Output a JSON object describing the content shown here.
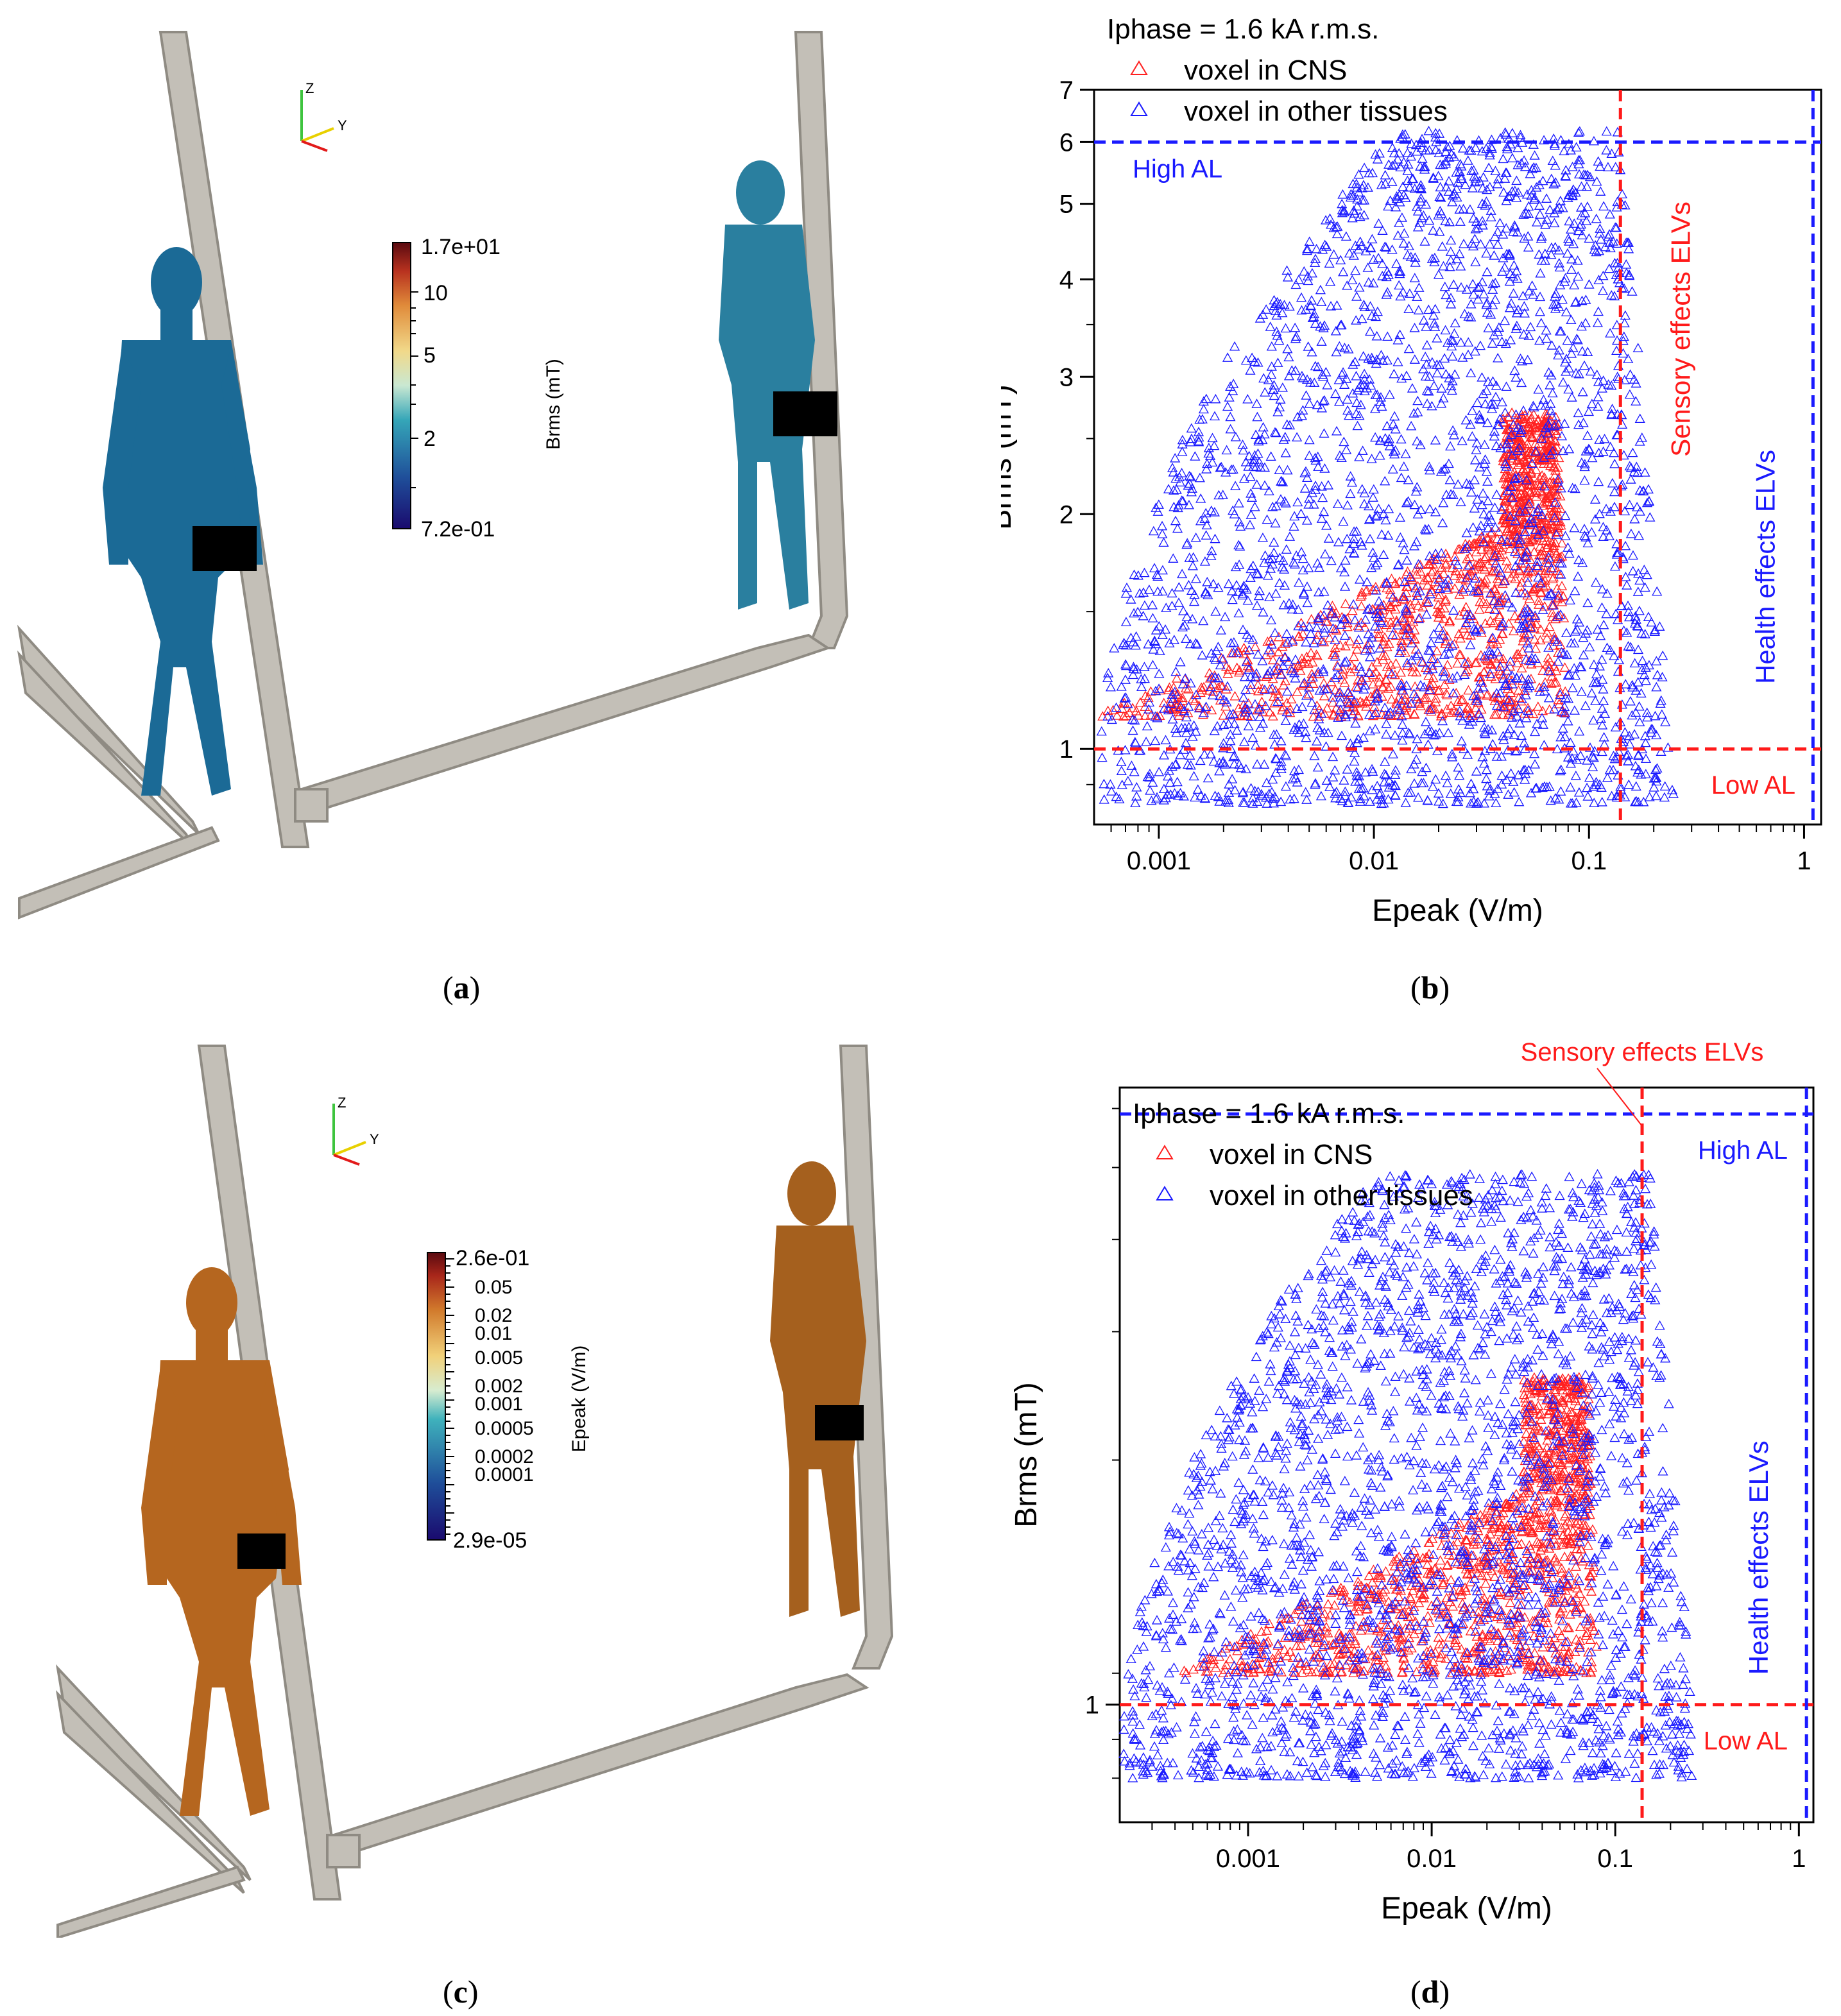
{
  "captions": {
    "a": "a",
    "b": "b",
    "c": "c",
    "d": "d"
  },
  "colors": {
    "cns": "#ff2020",
    "other": "#1a1aff",
    "limit_red": "#ff1a1a",
    "limit_blue": "#1a1aff",
    "pipe": "#bdb9b1"
  },
  "panel_a": {
    "axis_label_z": "Z",
    "axis_label_y": "Y",
    "colorbar": {
      "label": "Brms (mT)",
      "max": "1.7e+01",
      "min": "7.2e-01",
      "ticks": [
        "10",
        "5",
        "2"
      ],
      "colormap": "blue-cyan-yellow-red",
      "body_color": "#1b6a96"
    }
  },
  "panel_c": {
    "axis_label_z": "Z",
    "axis_label_y": "Y",
    "colorbar": {
      "label": "Epeak (V/m)",
      "max": "2.6e-01",
      "min": "2.9e-05",
      "ticks": [
        "0.05",
        "0.02",
        "0.01",
        "0.005",
        "0.002",
        "0.001",
        "0.0005",
        "0.0002",
        "0.0001"
      ],
      "colormap": "blue-cyan-yellow-red",
      "body_color": "#b5661f"
    }
  },
  "chart_data": [
    {
      "id": "b",
      "type": "scatter",
      "xscale": "log",
      "yscale": "log",
      "xlabel": "Epeak (V/m)",
      "ylabel": "Brms (mT)",
      "xlim": [
        0.0005,
        1.2
      ],
      "ylim": [
        0.8,
        7
      ],
      "xticks": [
        "0.001",
        "0.01",
        "0.1",
        "1"
      ],
      "yticks": [
        "1",
        "2",
        "3",
        "4",
        "5",
        "6",
        "7"
      ],
      "legend_title": "Iphase = 1.6 kA r.m.s.",
      "legend_position": "top-left",
      "series": [
        {
          "name": "voxel in CNS",
          "marker": "triangle",
          "color": "#ff2020",
          "region": {
            "x_range": [
              0.0005,
              0.08
            ],
            "y_range": [
              1.1,
              2.7
            ]
          }
        },
        {
          "name": "voxel in other tissues",
          "marker": "triangle",
          "color": "#1a1aff",
          "region": {
            "x_range": [
              0.0005,
              0.25
            ],
            "y_range": [
              0.85,
              6.2
            ]
          }
        }
      ],
      "reference_lines": [
        {
          "orientation": "horizontal",
          "value": 6,
          "label": "High AL",
          "color": "#1a1aff"
        },
        {
          "orientation": "horizontal",
          "value": 1,
          "label": "Low AL",
          "color": "#ff1a1a"
        },
        {
          "orientation": "vertical",
          "value": 0.14,
          "label": "Sensory effects ELVs",
          "color": "#ff1a1a"
        },
        {
          "orientation": "vertical",
          "value": 1.1,
          "label": "Health effects ELVs",
          "color": "#1a1aff"
        }
      ]
    },
    {
      "id": "d",
      "type": "scatter",
      "xscale": "log",
      "yscale": "log",
      "xlabel": "Epeak (V/m)",
      "ylabel": "Brms (mT)",
      "xlim": [
        0.0002,
        1.2
      ],
      "ylim": [
        0.7,
        6.5
      ],
      "xticks": [
        "0.001",
        "0.01",
        "0.1",
        "1"
      ],
      "yticks": [
        "1"
      ],
      "legend_title": "Iphase = 1.6 kA r.m.s.",
      "legend_position": "top-left",
      "series": [
        {
          "name": "voxel in CNS",
          "marker": "triangle",
          "color": "#ff2020",
          "region": {
            "x_range": [
              0.0004,
              0.08
            ],
            "y_range": [
              1.1,
              2.7
            ]
          }
        },
        {
          "name": "voxel in other tissues",
          "marker": "triangle",
          "color": "#1a1aff",
          "region": {
            "x_range": [
              0.0002,
              0.28
            ],
            "y_range": [
              0.8,
              5.0
            ]
          }
        }
      ],
      "reference_lines": [
        {
          "orientation": "horizontal",
          "value": 6,
          "label": "High AL",
          "color": "#1a1aff"
        },
        {
          "orientation": "horizontal",
          "value": 1,
          "label": "Low AL",
          "color": "#ff1a1a"
        },
        {
          "orientation": "vertical",
          "value": 0.14,
          "label": "Sensory effects ELVs",
          "color": "#ff1a1a"
        },
        {
          "orientation": "vertical",
          "value": 1.1,
          "label": "Health effects ELVs",
          "color": "#1a1aff"
        }
      ]
    }
  ]
}
